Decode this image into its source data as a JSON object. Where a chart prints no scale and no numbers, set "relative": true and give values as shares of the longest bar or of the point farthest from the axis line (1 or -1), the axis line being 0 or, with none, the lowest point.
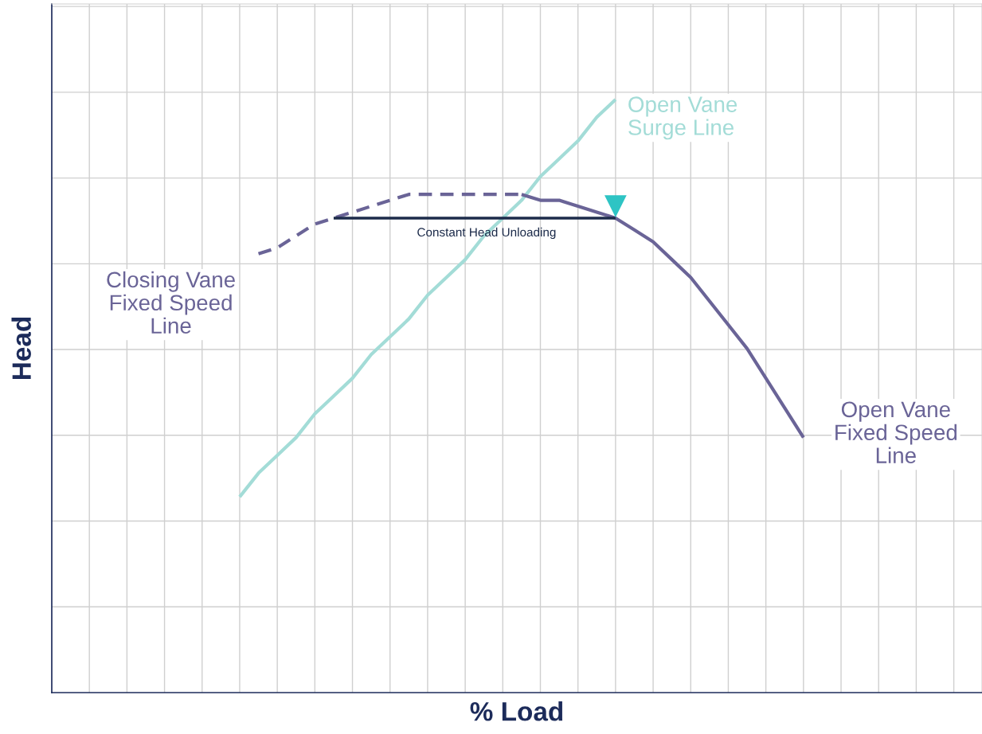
{
  "chart_data": {
    "type": "line",
    "xlabel": "% Load",
    "ylabel": "Head",
    "relative": true,
    "grid": true,
    "tick_labels": false,
    "categories": [
      null,
      null,
      null,
      null,
      null,
      null,
      null,
      null,
      null,
      null,
      null,
      null,
      null,
      null,
      null,
      null,
      null,
      null,
      null,
      null,
      null,
      null,
      null,
      null,
      null,
      null,
      null,
      null,
      null,
      null,
      null,
      null,
      null,
      null,
      null,
      null,
      null,
      null,
      null,
      null,
      null,
      null,
      null,
      null,
      null,
      null,
      null,
      null,
      null,
      null
    ],
    "series": [
      {
        "name": "Open Vane\nSurge Line",
        "color": "#a3dcd7",
        "line_style": "solid",
        "values": [
          null,
          null,
          null,
          null,
          null,
          null,
          null,
          null,
          null,
          null,
          0.33,
          0.37,
          0.4,
          0.43,
          0.47,
          0.5,
          0.53,
          0.57,
          0.6,
          0.63,
          0.67,
          0.7,
          0.73,
          0.77,
          0.8,
          0.83,
          0.87,
          0.9,
          0.93,
          0.97,
          1,
          null,
          null,
          null,
          null,
          null,
          null,
          null,
          null,
          null,
          null,
          null,
          null,
          null,
          null,
          null,
          null,
          null,
          null,
          null
        ]
      },
      {
        "name": "Closing Vane\nFixed Speed\nLine",
        "color": "#6a6497",
        "line_style": "dashed",
        "values": [
          null,
          null,
          null,
          null,
          null,
          null,
          null,
          null,
          null,
          null,
          null,
          0.74,
          0.75,
          0.77,
          0.79,
          0.8,
          0.81,
          0.82,
          0.83,
          0.84,
          0.84,
          0.84,
          0.84,
          0.84,
          0.84,
          0.84,
          null,
          null,
          null,
          null,
          null,
          null,
          null,
          null,
          null,
          null,
          null,
          null,
          null,
          null,
          null,
          null,
          null,
          null,
          null,
          null,
          null,
          null,
          null,
          null
        ]
      },
      {
        "name": "Open Vane\nFixed Speed\nLine",
        "color": "#6a6497",
        "line_style": "solid",
        "values": [
          null,
          null,
          null,
          null,
          null,
          null,
          null,
          null,
          null,
          null,
          null,
          null,
          null,
          null,
          null,
          null,
          null,
          null,
          null,
          null,
          null,
          null,
          null,
          null,
          null,
          0.84,
          0.83,
          0.83,
          0.82,
          0.81,
          0.8,
          0.78,
          0.76,
          0.73,
          0.7,
          0.66,
          0.62,
          0.58,
          0.53,
          0.48,
          0.43,
          null,
          null,
          null,
          null,
          null,
          null,
          null,
          null,
          null
        ]
      },
      {
        "name": "Constant Head Unloading",
        "color": "#1c2b4a",
        "line_style": "solid",
        "values": [
          null,
          null,
          null,
          null,
          null,
          null,
          null,
          null,
          null,
          null,
          null,
          null,
          null,
          null,
          null,
          0.8,
          0.8,
          0.8,
          0.8,
          0.8,
          0.8,
          0.8,
          0.8,
          0.8,
          0.8,
          0.8,
          0.8,
          0.8,
          0.8,
          0.8,
          0.8,
          null,
          null,
          null,
          null,
          null,
          null,
          null,
          null,
          null,
          null,
          null,
          null,
          null,
          null,
          null,
          null,
          null,
          null,
          null
        ]
      },
      {
        "color": "#2ec4c4",
        "marker": "triangle",
        "values": [
          null,
          null,
          null,
          null,
          null,
          null,
          null,
          null,
          null,
          null,
          null,
          null,
          null,
          null,
          null,
          null,
          null,
          null,
          null,
          null,
          null,
          null,
          null,
          null,
          null,
          null,
          null,
          null,
          null,
          null,
          0.82,
          null,
          null,
          null,
          null,
          null,
          null,
          null,
          null,
          null,
          null,
          null,
          null,
          null,
          null,
          null,
          null,
          null,
          null,
          null
        ]
      }
    ]
  }
}
